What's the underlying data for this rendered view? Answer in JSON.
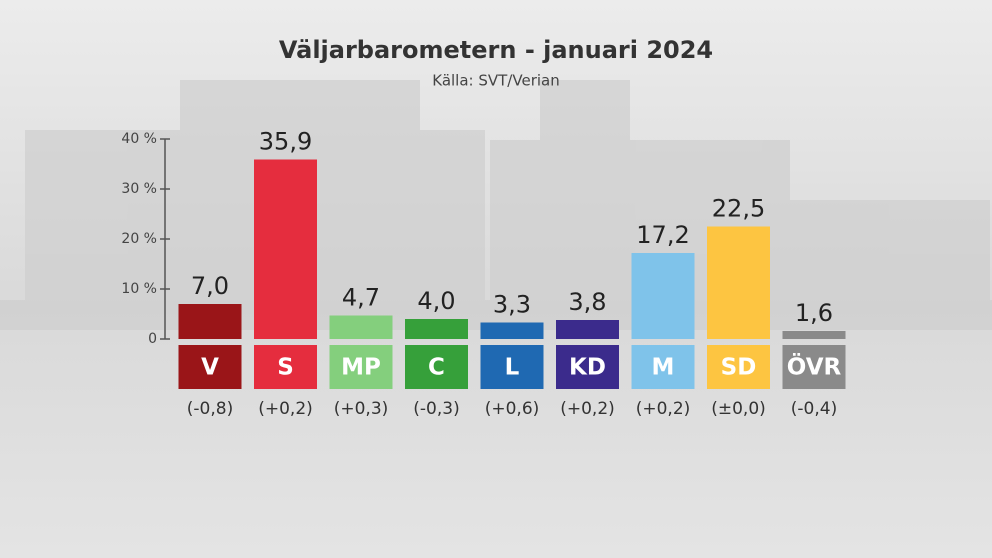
{
  "chart_data": {
    "type": "bar",
    "title": "Väljarbarometern - januari 2024",
    "subtitle": "Källa: SVT/Verian",
    "categories": [
      "V",
      "S",
      "MP",
      "C",
      "L",
      "KD",
      "M",
      "SD",
      "ÖVR"
    ],
    "values": [
      7.0,
      35.9,
      4.7,
      4.0,
      3.3,
      3.8,
      17.2,
      22.5,
      1.6
    ],
    "value_labels": [
      "7,0",
      "35,9",
      "4,7",
      "4,0",
      "3,3",
      "3,8",
      "17,2",
      "22,5",
      "1,6"
    ],
    "change_labels": [
      "(-0,8)",
      "(+0,2)",
      "(+0,3)",
      "(-0,3)",
      "(+0,6)",
      "(+0,2)",
      "(+0,2)",
      "(±0,0)",
      "(-0,4)"
    ],
    "colors": [
      "#9a1518",
      "#e52d3e",
      "#84cf7d",
      "#36a03a",
      "#1f69b2",
      "#3b2b8c",
      "#7fc3ea",
      "#fdc541",
      "#8a8a8a"
    ],
    "ylim": [
      0,
      40
    ],
    "yticks": [
      0,
      {
        "value": 10,
        "label": "10 %"
      },
      {
        "value": 20,
        "label": "20 %"
      },
      {
        "value": 30,
        "label": "30 %"
      },
      {
        "value": 40,
        "label": "40 %"
      }
    ]
  }
}
